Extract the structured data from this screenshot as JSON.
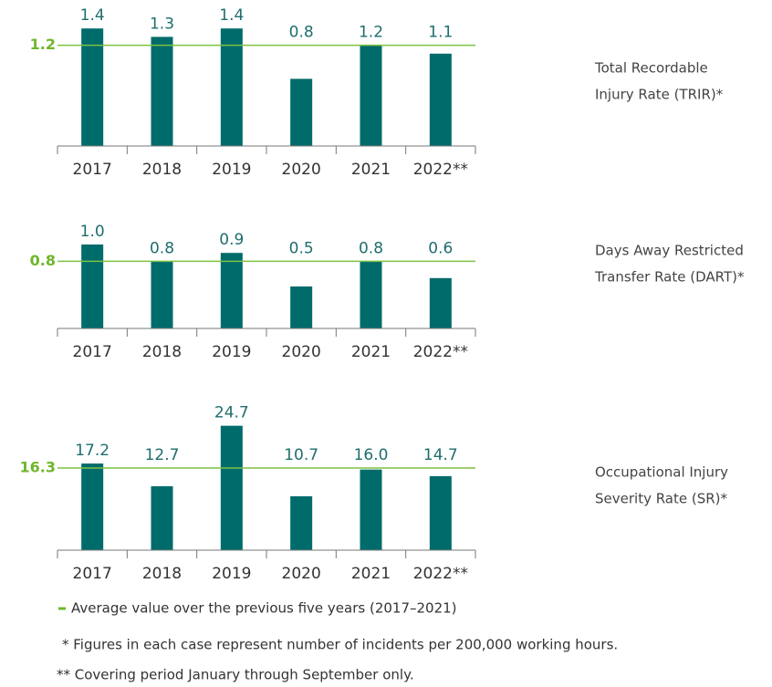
{
  "chart_data": [
    {
      "type": "bar",
      "title": [
        "Total Recordable",
        "Injury Rate (TRIR)*"
      ],
      "categories": [
        "2017",
        "2018",
        "2019",
        "2020",
        "2021",
        "2022**"
      ],
      "values": [
        1.4,
        1.3,
        1.4,
        0.8,
        1.2,
        1.1
      ],
      "value_labels": [
        "1.4",
        "1.3",
        "1.4",
        "0.8",
        "1.2",
        "1.1"
      ],
      "reference_line": 1.2,
      "color": "#006b6b",
      "reference_color": "#7dc242",
      "ylim": [
        0,
        1.5
      ]
    },
    {
      "type": "bar",
      "title": [
        "Days Away Restricted",
        "Transfer Rate (DART)*"
      ],
      "categories": [
        "2017",
        "2018",
        "2019",
        "2020",
        "2021",
        "2022**"
      ],
      "values": [
        1.0,
        0.8,
        0.9,
        0.5,
        0.8,
        0.6
      ],
      "value_labels": [
        "1.0",
        "0.8",
        "0.9",
        "0.5",
        "0.8",
        "0.6"
      ],
      "reference_line": 0.8,
      "color": "#006b6b",
      "reference_color": "#7dc242",
      "ylim": [
        0,
        1.5
      ]
    },
    {
      "type": "bar",
      "title": [
        "Occupational Injury",
        "Severity Rate (SR)*"
      ],
      "categories": [
        "2017",
        "2018",
        "2019",
        "2020",
        "2021",
        "2022**"
      ],
      "values": [
        17.2,
        12.7,
        24.7,
        10.7,
        16.0,
        14.7
      ],
      "value_labels": [
        "17.2",
        "12.7",
        "24.7",
        "10.7",
        "16.0",
        "14.7"
      ],
      "reference_line": 16.3,
      "color": "#006b6b",
      "reference_color": "#7dc242",
      "ylim": [
        0,
        25
      ]
    }
  ],
  "notes": [
    "Average value over the previous five years (2017–2021)",
    "* Figures in each case represent number of incidents per 200,000 working hours.",
    "** Covering period January through September only."
  ]
}
